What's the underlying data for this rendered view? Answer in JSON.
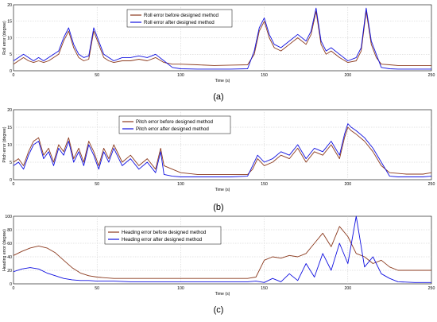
{
  "chart_data": [
    {
      "type": "line",
      "panel_label": "(a)",
      "xlabel": "Time (s)",
      "ylabel": "Roll error (degree)",
      "xlim": [
        0,
        250
      ],
      "ylim": [
        0,
        20
      ],
      "xticks": [
        0,
        50,
        100,
        150,
        200,
        250
      ],
      "yticks": [
        0,
        5,
        10,
        15,
        20
      ],
      "grid": true,
      "legend_position": "top-center",
      "series": [
        {
          "name": "Roll error before designed method",
          "color": "#8b3a1e",
          "x": [
            0,
            3,
            6,
            9,
            12,
            15,
            18,
            21,
            24,
            27,
            30,
            33,
            36,
            39,
            42,
            45,
            48,
            51,
            54,
            57,
            60,
            65,
            70,
            75,
            80,
            85,
            90,
            95,
            100,
            110,
            120,
            130,
            140,
            144,
            147,
            150,
            153,
            156,
            160,
            165,
            170,
            175,
            178,
            181,
            184,
            187,
            190,
            195,
            200,
            205,
            208,
            211,
            214,
            217,
            220,
            225,
            230,
            235,
            240,
            245,
            250
          ],
          "y": [
            2,
            3,
            4,
            3,
            2.5,
            3,
            2.5,
            3,
            4,
            5,
            9,
            12,
            7,
            4,
            3,
            3.5,
            12,
            8,
            4,
            3,
            2.5,
            3,
            3,
            3.5,
            3,
            4,
            2.5,
            2,
            2,
            1.8,
            1.6,
            1.7,
            1.8,
            5,
            12,
            15,
            10,
            7,
            6,
            8,
            10,
            8,
            11,
            18,
            8,
            5,
            6,
            4,
            2.5,
            3,
            6,
            18,
            8,
            4,
            2,
            1.8,
            1.6,
            1.6,
            1.6,
            1.6,
            1.6
          ]
        },
        {
          "name": "Roll error after designed method",
          "color": "#1010e0",
          "x": [
            0,
            3,
            6,
            9,
            12,
            15,
            18,
            21,
            24,
            27,
            30,
            33,
            36,
            39,
            42,
            45,
            48,
            51,
            54,
            57,
            60,
            65,
            70,
            75,
            80,
            85,
            90,
            95,
            100,
            110,
            120,
            130,
            140,
            144,
            147,
            150,
            153,
            156,
            160,
            165,
            170,
            175,
            178,
            181,
            184,
            187,
            190,
            195,
            200,
            205,
            208,
            211,
            214,
            217,
            220,
            225,
            230,
            235,
            240,
            245,
            250
          ],
          "y": [
            3,
            4,
            5,
            4,
            3,
            4,
            3,
            4,
            5,
            6,
            10,
            13,
            8,
            5,
            4,
            4.5,
            13,
            9,
            5,
            4,
            3,
            4,
            4,
            4.5,
            4,
            5,
            3,
            1,
            0.6,
            0.5,
            0.5,
            0.5,
            0.6,
            6,
            13,
            16,
            11,
            8,
            7,
            9,
            11,
            9,
            12,
            19,
            9,
            6,
            7,
            5,
            3,
            4,
            7,
            19,
            9,
            5,
            1,
            0.6,
            0.5,
            0.5,
            0.5,
            0.5,
            0.5
          ]
        }
      ]
    },
    {
      "type": "line",
      "panel_label": "(b)",
      "xlabel": "Time (s)",
      "ylabel": "Pitch error (degree)",
      "xlim": [
        0,
        250
      ],
      "ylim": [
        0,
        20
      ],
      "xticks": [
        0,
        50,
        100,
        150,
        200,
        250
      ],
      "yticks": [
        0,
        5,
        10,
        15,
        20
      ],
      "grid": true,
      "legend_position": "top-right",
      "series": [
        {
          "name": "Pitch error before designed method",
          "color": "#8b3a1e",
          "x": [
            0,
            3,
            6,
            9,
            12,
            15,
            18,
            21,
            24,
            27,
            30,
            33,
            36,
            39,
            42,
            45,
            48,
            51,
            54,
            57,
            60,
            65,
            70,
            75,
            80,
            85,
            88,
            90,
            95,
            100,
            110,
            120,
            130,
            140,
            143,
            146,
            150,
            155,
            160,
            165,
            170,
            175,
            180,
            185,
            190,
            195,
            198,
            200,
            202,
            205,
            210,
            215,
            220,
            225,
            230,
            235,
            240,
            245,
            250
          ],
          "y": [
            5,
            6,
            4,
            8,
            11,
            12,
            7,
            9,
            5,
            10,
            8,
            12,
            6,
            9,
            5,
            11,
            8,
            4,
            9,
            6,
            10,
            5,
            7,
            4,
            6,
            3,
            9,
            4,
            3,
            2,
            1.5,
            1.5,
            1.5,
            1.5,
            3,
            6,
            4,
            5,
            7,
            6,
            9,
            5,
            8,
            7,
            10,
            6,
            12,
            15,
            14,
            13,
            11,
            8,
            4,
            2,
            1.8,
            1.6,
            1.6,
            1.6,
            2
          ]
        },
        {
          "name": "Pitch error after designed method",
          "color": "#1010e0",
          "x": [
            0,
            3,
            6,
            9,
            12,
            15,
            18,
            21,
            24,
            27,
            30,
            33,
            36,
            39,
            42,
            45,
            48,
            51,
            54,
            57,
            60,
            65,
            70,
            75,
            80,
            85,
            88,
            90,
            95,
            100,
            110,
            120,
            130,
            140,
            143,
            146,
            150,
            155,
            160,
            165,
            170,
            175,
            180,
            185,
            190,
            195,
            198,
            200,
            202,
            205,
            210,
            215,
            220,
            225,
            230,
            235,
            240,
            245,
            250
          ],
          "y": [
            4,
            5,
            3,
            7,
            10,
            11,
            6,
            8,
            4,
            9,
            7,
            11,
            5,
            8,
            4,
            10,
            7,
            3,
            8,
            5,
            9,
            4,
            6,
            3,
            5,
            2,
            8,
            1.5,
            1,
            0.8,
            0.8,
            0.8,
            0.8,
            1,
            4,
            7,
            5,
            6,
            8,
            7,
            10,
            6,
            9,
            8,
            11,
            7,
            13,
            16,
            15,
            14,
            12,
            9,
            5,
            1,
            0.8,
            0.8,
            0.8,
            0.8,
            1
          ]
        }
      ]
    },
    {
      "type": "line",
      "panel_label": "(c)",
      "xlabel": "Time (s)",
      "ylabel": "Heading error (degree)",
      "xlim": [
        0,
        250
      ],
      "ylim": [
        0,
        100
      ],
      "xticks": [
        0,
        50,
        100,
        150,
        200,
        250
      ],
      "yticks": [
        0,
        20,
        40,
        60,
        80,
        100
      ],
      "grid": true,
      "legend_position": "top-center",
      "series": [
        {
          "name": "Heading error before designed method",
          "color": "#8b3a1e",
          "x": [
            0,
            5,
            10,
            15,
            20,
            25,
            30,
            35,
            40,
            45,
            50,
            55,
            60,
            70,
            80,
            90,
            100,
            110,
            120,
            130,
            140,
            145,
            150,
            155,
            160,
            165,
            170,
            175,
            180,
            185,
            190,
            195,
            200,
            205,
            210,
            215,
            220,
            225,
            230,
            240,
            250
          ],
          "y": [
            42,
            48,
            53,
            56,
            53,
            46,
            35,
            24,
            16,
            12,
            10,
            9,
            8,
            8,
            8,
            8,
            8,
            8,
            8,
            8,
            8,
            10,
            35,
            40,
            38,
            42,
            40,
            45,
            60,
            75,
            55,
            85,
            70,
            45,
            40,
            30,
            35,
            25,
            20,
            20,
            20
          ]
        },
        {
          "name": "Heading error after designed method",
          "color": "#1010e0",
          "x": [
            0,
            5,
            10,
            15,
            20,
            25,
            30,
            35,
            40,
            45,
            50,
            55,
            60,
            70,
            80,
            90,
            100,
            110,
            120,
            130,
            140,
            145,
            150,
            155,
            160,
            165,
            170,
            175,
            180,
            185,
            190,
            195,
            200,
            205,
            210,
            215,
            220,
            225,
            230,
            240,
            250
          ],
          "y": [
            18,
            22,
            24,
            22,
            16,
            12,
            8,
            6,
            5,
            5,
            4,
            4,
            4,
            3,
            3,
            3,
            3,
            3,
            3,
            3,
            3,
            4,
            2,
            8,
            3,
            15,
            5,
            30,
            10,
            45,
            20,
            60,
            30,
            100,
            25,
            40,
            15,
            8,
            3,
            2,
            2
          ]
        }
      ]
    }
  ]
}
